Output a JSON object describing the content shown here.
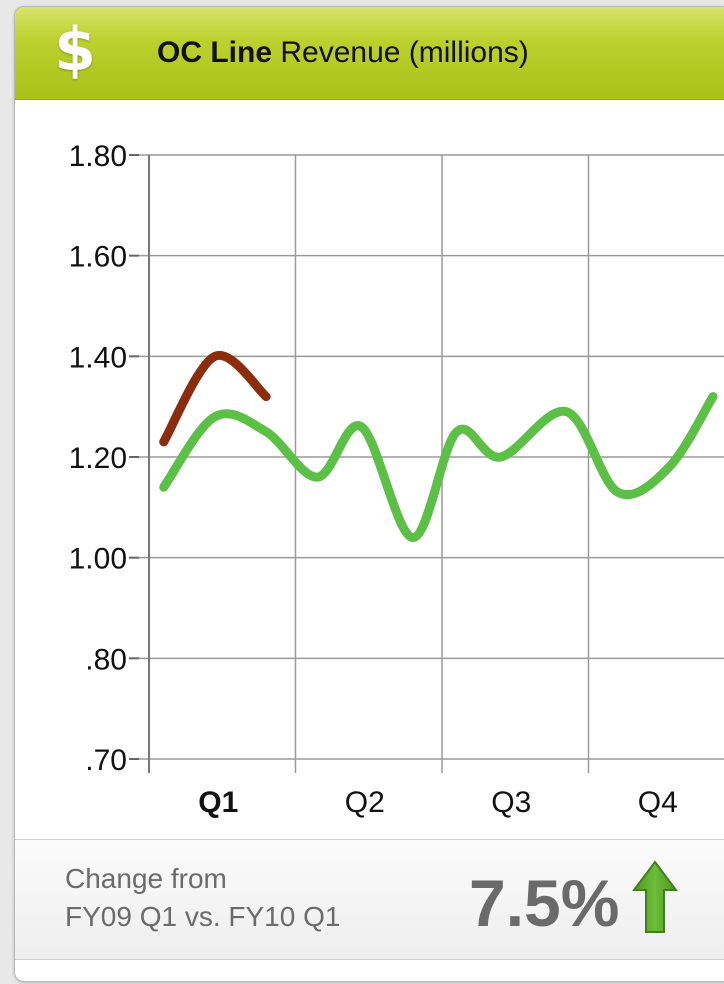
{
  "header": {
    "icon": "dollar-icon",
    "icon_glyph": "$",
    "title_bold": "OC Line",
    "title_rest": " Revenue (millions)"
  },
  "chart_data": {
    "type": "line",
    "title": "OC Line Revenue (millions)",
    "categories": [
      "Q1",
      "Q2",
      "Q3",
      "Q4"
    ],
    "highlighted_category": "Q1",
    "y_ticks": [
      "1.80",
      "1.60",
      "1.40",
      "1.20",
      "1.00",
      ".80",
      ".70"
    ],
    "ylim": [
      0.7,
      1.8
    ],
    "grid": true,
    "x_range": [
      0,
      4
    ],
    "series": [
      {
        "color": "#5cbf46",
        "x": [
          0.1,
          0.45,
          0.8,
          1.15,
          1.45,
          1.8,
          2.1,
          2.4,
          2.85,
          3.2,
          3.55,
          3.85
        ],
        "values": [
          1.14,
          1.28,
          1.25,
          1.16,
          1.26,
          1.04,
          1.25,
          1.2,
          1.29,
          1.13,
          1.18,
          1.32
        ]
      },
      {
        "color": "#8b2d0c",
        "x": [
          0.1,
          0.45,
          0.8
        ],
        "values": [
          1.23,
          1.4,
          1.32
        ]
      }
    ]
  },
  "footer": {
    "label_line1": "Change from",
    "label_line2": "FY09 Q1 vs. FY10 Q1",
    "change_value": "7.5%",
    "direction_icon": "up-arrow-icon",
    "arrow_color": "#6cbd3a"
  }
}
